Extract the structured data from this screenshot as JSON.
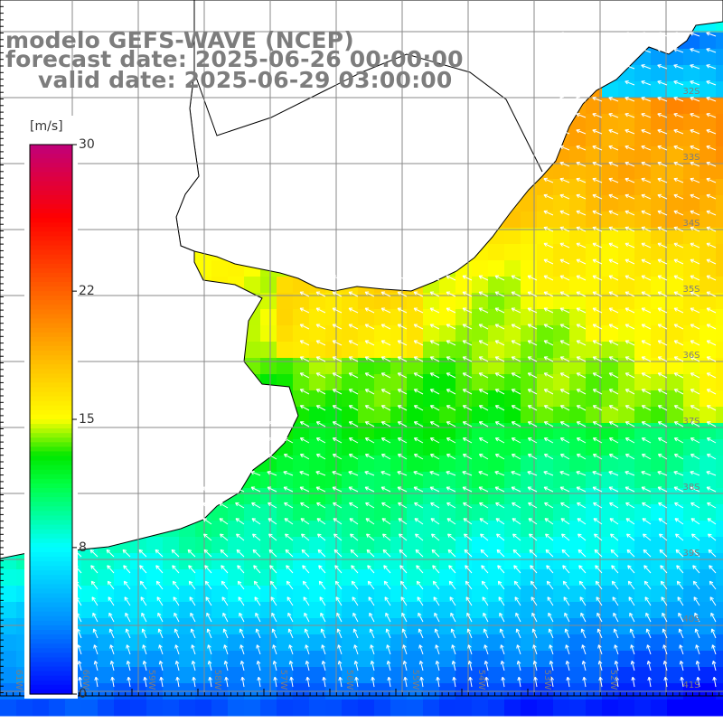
{
  "title": {
    "model": "modelo GEFS-WAVE (NCEP)",
    "forecast": "forecast date: 2025-06-26 00:00:00",
    "valid": "valid date: 2025-06-29 03:00:00"
  },
  "colorbar": {
    "unit": "[m/s]",
    "min": 0,
    "max": 30,
    "ticks": [
      {
        "value": 30,
        "label": "30"
      },
      {
        "value": 22,
        "label": "22"
      },
      {
        "value": 15,
        "label": "15"
      },
      {
        "value": 8,
        "label": "8"
      },
      {
        "value": 0,
        "label": "0"
      }
    ],
    "colors": [
      "#0000ff",
      "#00a0ff",
      "#00ffff",
      "#00ff00",
      "#ffff00",
      "#ff8000",
      "#ff0000",
      "#c0007a"
    ]
  },
  "map": {
    "variable": "wind speed",
    "arrow_color": "#ffffff",
    "land_color": "#ffffff",
    "grid_color": "#8a8a8a",
    "lat_labels": [
      "32S",
      "33S",
      "34S",
      "35S",
      "36S",
      "37S",
      "38S",
      "39S",
      "40S",
      "41S"
    ],
    "lon_labels": [
      "61W",
      "60W",
      "59W",
      "58W",
      "57W",
      "56W",
      "55W",
      "54W",
      "53W",
      "52W"
    ]
  }
}
